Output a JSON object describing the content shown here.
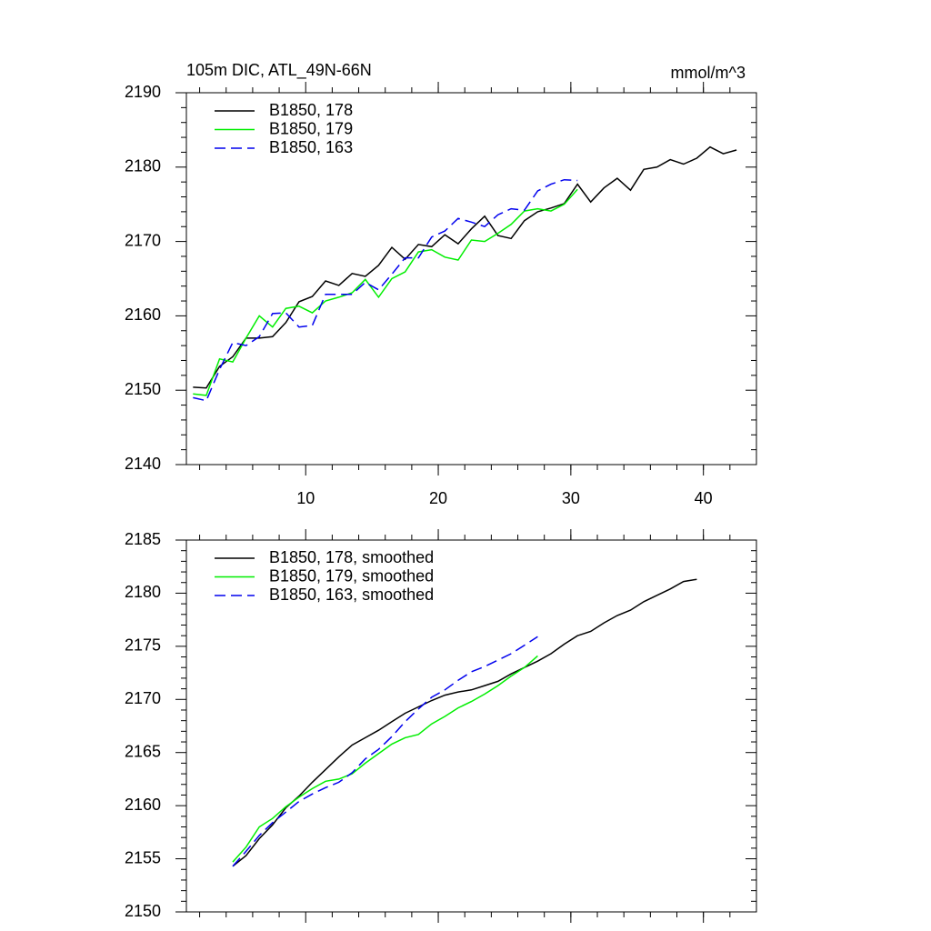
{
  "chart_data": [
    {
      "type": "line",
      "title": "105m DIC, ATL_49N-66N",
      "units": "mmol/m^3",
      "xlim": [
        1,
        44
      ],
      "xticks": [
        10,
        20,
        30,
        40
      ],
      "ylim": [
        2140,
        2190
      ],
      "yticks": [
        2140,
        2150,
        2160,
        2170,
        2180,
        2190
      ],
      "legend": "upper left",
      "series": [
        {
          "name": "B1850, 178",
          "color": "#000000",
          "dash": false,
          "x": [
            1.5,
            2.5,
            3.5,
            4.5,
            5.5,
            6.5,
            7.5,
            8.5,
            9.5,
            10.5,
            11.5,
            12.5,
            13.5,
            14.5,
            15.5,
            16.5,
            17.5,
            18.5,
            19.5,
            20.5,
            21.5,
            22.5,
            23.5,
            24.5,
            25.5,
            26.5,
            27.5,
            28.5,
            29.5,
            30.5,
            31.5,
            32.5,
            33.5,
            34.5,
            35.5,
            36.5,
            37.5,
            38.5,
            39.5,
            40.5,
            41.5,
            42.5
          ],
          "values": [
            2150.4,
            2150.3,
            2153.2,
            2154.5,
            2157,
            2157,
            2157.2,
            2159.1,
            2161.9,
            2162.6,
            2164.7,
            2164.1,
            2165.7,
            2165.3,
            2166.8,
            2169.2,
            2167.6,
            2169.6,
            2169.3,
            2170.9,
            2169.7,
            2171.7,
            2173.4,
            2170.8,
            2170.4,
            2172.8,
            2174,
            2174.5,
            2175.1,
            2177.7,
            2175.3,
            2177.2,
            2178.5,
            2176.9,
            2179.7,
            2180,
            2181,
            2180.4,
            2181.2,
            2182.7,
            2181.8,
            2182.3
          ]
        },
        {
          "name": "B1850, 179",
          "color": "#00ee00",
          "dash": false,
          "x": [
            1.5,
            2.5,
            3.5,
            4.5,
            5.5,
            6.5,
            7.5,
            8.5,
            9.5,
            10.5,
            11.5,
            12.5,
            13.5,
            14.5,
            15.5,
            16.5,
            17.5,
            18.5,
            19.5,
            20.5,
            21.5,
            22.5,
            23.5,
            24.5,
            25.5,
            26.5,
            27.5,
            28.5,
            29.5,
            30.5
          ],
          "values": [
            2149.5,
            2149.3,
            2154.2,
            2153.8,
            2157,
            2160,
            2158.5,
            2161,
            2161.3,
            2160.4,
            2162,
            2162.5,
            2163.1,
            2164.9,
            2162.5,
            2165,
            2165.9,
            2168.6,
            2168.9,
            2167.9,
            2167.5,
            2170.2,
            2170,
            2171.1,
            2172.3,
            2174.1,
            2174.4,
            2174.1,
            2175,
            2177
          ]
        },
        {
          "name": "B1850, 163",
          "color": "#0000ee",
          "dash": true,
          "x": [
            1.5,
            2.5,
            3.5,
            4.5,
            5.5,
            6.5,
            7.5,
            8.5,
            9.5,
            10.5,
            11.5,
            12.5,
            13.5,
            14.5,
            15.5,
            16.5,
            17.5,
            18.5,
            19.5,
            20.5,
            21.5,
            22.5,
            23.5,
            24.5,
            25.5,
            26.5,
            27.5,
            28.5,
            29.5,
            30.5
          ],
          "values": [
            2149,
            2148.6,
            2152.8,
            2156.4,
            2156,
            2157.2,
            2160.3,
            2160.4,
            2158.5,
            2158.7,
            2162.9,
            2162.9,
            2162.9,
            2164.5,
            2163.5,
            2165.6,
            2167.8,
            2167.8,
            2170.6,
            2171.4,
            2173.1,
            2172.6,
            2172,
            2173.6,
            2174.4,
            2174.2,
            2176.8,
            2177.7,
            2178.3,
            2178.2
          ]
        }
      ]
    },
    {
      "type": "line",
      "xlim": [
        1,
        44
      ],
      "xticks": [
        10,
        20,
        30,
        40
      ],
      "ylim": [
        2150,
        2185
      ],
      "yticks": [
        2150,
        2155,
        2160,
        2165,
        2170,
        2175,
        2180,
        2185
      ],
      "legend": "upper left",
      "series": [
        {
          "name": "B1850, 178, smoothed",
          "color": "#000000",
          "dash": false,
          "x": [
            4.5,
            5.5,
            6.5,
            7.5,
            8.5,
            9.5,
            10.5,
            11.5,
            12.5,
            13.5,
            14.5,
            15.5,
            16.5,
            17.5,
            18.5,
            19.5,
            20.5,
            21.5,
            22.5,
            23.5,
            24.5,
            25.5,
            26.5,
            27.5,
            28.5,
            29.5,
            30.5,
            31.5,
            32.5,
            33.5,
            34.5,
            35.5,
            36.5,
            37.5,
            38.5,
            39.5
          ],
          "values": [
            2154.3,
            2155.3,
            2156.9,
            2158.2,
            2159.8,
            2160.9,
            2162.2,
            2163.4,
            2164.6,
            2165.7,
            2166.4,
            2167.1,
            2167.9,
            2168.7,
            2169.3,
            2169.9,
            2170.4,
            2170.7,
            2170.9,
            2171.3,
            2171.7,
            2172.4,
            2173,
            2173.6,
            2174.3,
            2175.2,
            2176,
            2176.4,
            2177.2,
            2177.9,
            2178.4,
            2179.2,
            2179.8,
            2180.4,
            2181.1,
            2181.3
          ]
        },
        {
          "name": "B1850, 179, smoothed",
          "color": "#00ee00",
          "dash": false,
          "x": [
            4.5,
            5.5,
            6.5,
            7.5,
            8.5,
            9.5,
            10.5,
            11.5,
            12.5,
            13.5,
            14.5,
            15.5,
            16.5,
            17.5,
            18.5,
            19.5,
            20.5,
            21.5,
            22.5,
            23.5,
            24.5,
            25.5,
            26.5,
            27.5
          ],
          "values": [
            2154.7,
            2156.1,
            2158,
            2158.8,
            2159.9,
            2160.8,
            2161.6,
            2162.3,
            2162.5,
            2163,
            2164,
            2164.9,
            2165.8,
            2166.4,
            2166.7,
            2167.7,
            2168.4,
            2169.2,
            2169.8,
            2170.5,
            2171.3,
            2172.2,
            2173,
            2174.1
          ]
        },
        {
          "name": "B1850, 163, smoothed",
          "color": "#0000ee",
          "dash": true,
          "x": [
            4.5,
            5.5,
            6.5,
            7.5,
            8.5,
            9.5,
            10.5,
            11.5,
            12.5,
            13.5,
            14.5,
            15.5,
            16.5,
            17.5,
            18.5,
            19.5,
            20.5,
            21.5,
            22.5,
            23.5,
            24.5,
            25.5,
            26.5,
            27.5
          ],
          "values": [
            2154.3,
            2155.7,
            2157.2,
            2158.4,
            2159.4,
            2160.4,
            2161.1,
            2161.7,
            2162.2,
            2163.1,
            2164.4,
            2165.3,
            2166.5,
            2167.9,
            2169.1,
            2170.2,
            2170.9,
            2171.8,
            2172.6,
            2173.1,
            2173.7,
            2174.3,
            2175.1,
            2175.9
          ]
        }
      ]
    }
  ]
}
